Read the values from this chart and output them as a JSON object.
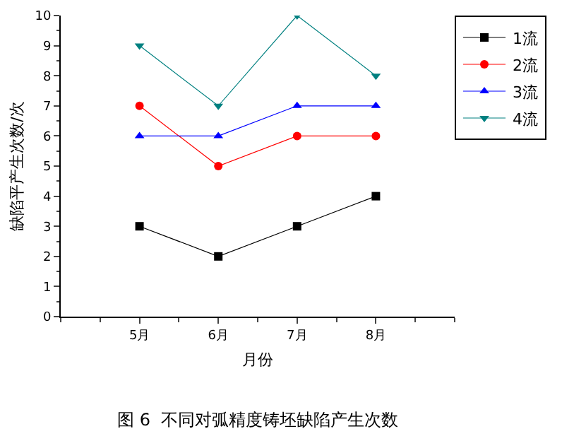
{
  "chart_data": {
    "type": "line",
    "title": "图 6  不同对弧精度铸坯缺陷产生次数",
    "xlabel": "月份",
    "ylabel": "缺陷平产生次数/次",
    "categories": [
      "5月",
      "6月",
      "7月",
      "8月"
    ],
    "series": [
      {
        "name": "1流",
        "color": "#000000",
        "marker": "square",
        "values": [
          3,
          2,
          3,
          4
        ]
      },
      {
        "name": "2流",
        "color": "#ff0000",
        "marker": "circle",
        "values": [
          7,
          5,
          6,
          6
        ]
      },
      {
        "name": "3流",
        "color": "#0000ff",
        "marker": "triangle",
        "values": [
          6,
          6,
          7,
          7
        ]
      },
      {
        "name": "4流",
        "color": "#008080",
        "marker": "triangle-down",
        "values": [
          9,
          7,
          10,
          8
        ]
      }
    ],
    "ylim": [
      0,
      10
    ],
    "yticks": [
      0,
      1,
      2,
      3,
      4,
      5,
      6,
      7,
      8,
      9,
      10
    ],
    "grid": false,
    "legend": "top right",
    "line_style": "solid"
  }
}
